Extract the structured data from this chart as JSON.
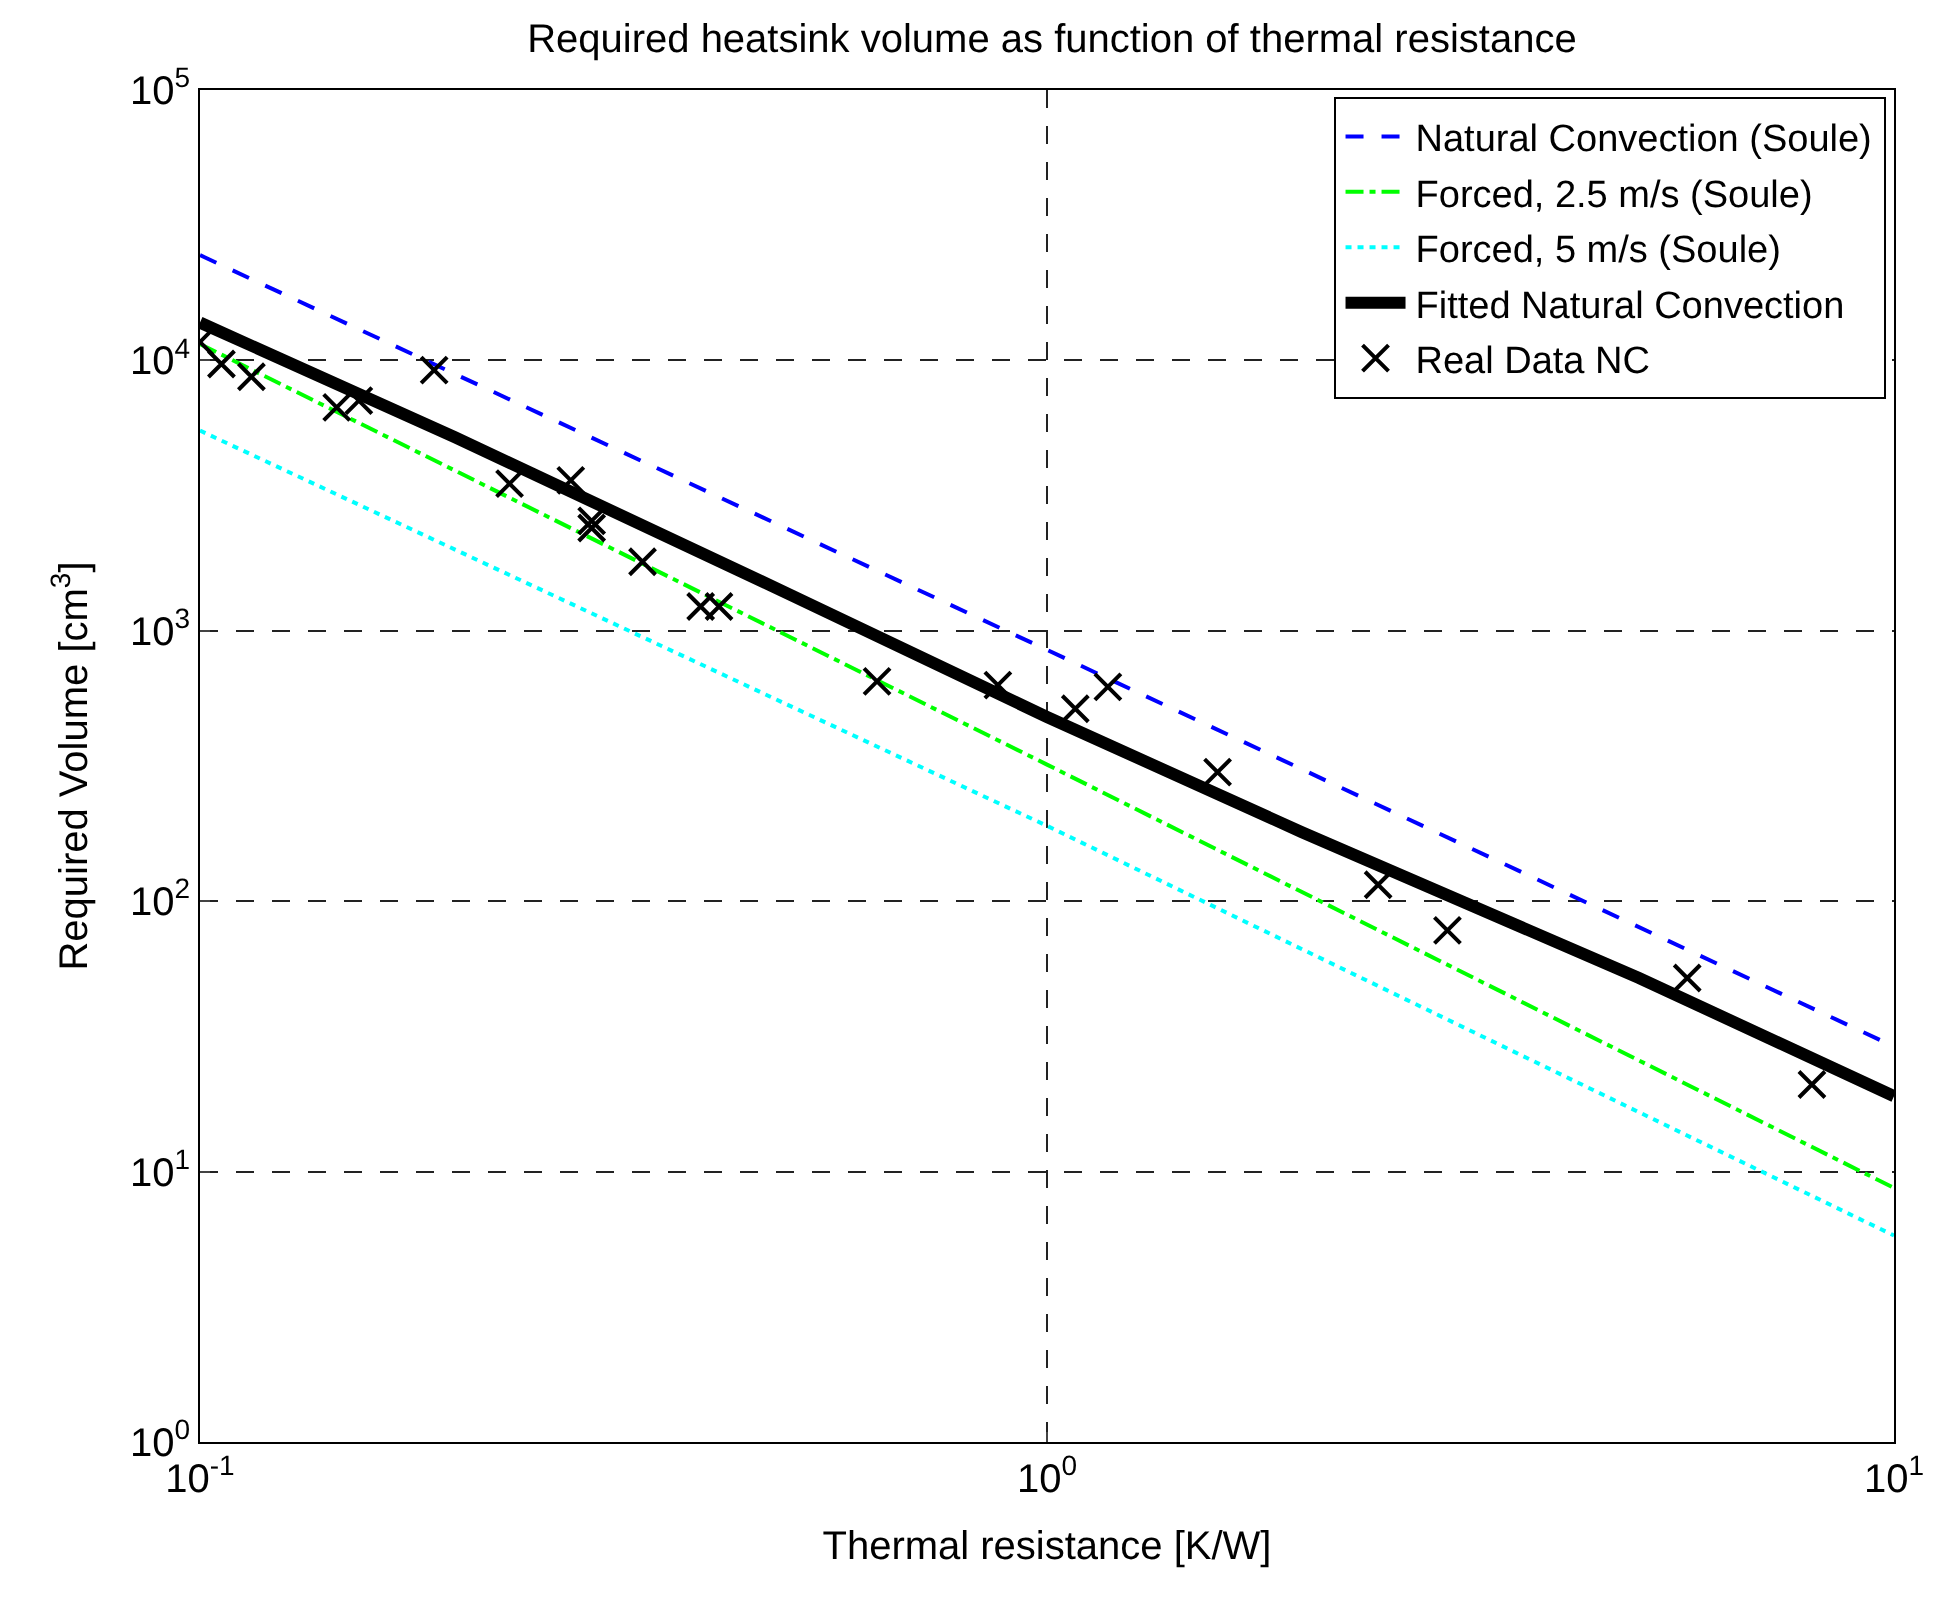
{
  "chart_data": {
    "type": "line",
    "title": "Required heatsink volume as function of thermal resistance",
    "xlabel": "Thermal resistance [K/W]",
    "ylabel": "Required Volume [cm$^{3}$]",
    "log": "xy",
    "grid": true,
    "legend": "top right",
    "xlim": [
      0.1,
      10
    ],
    "ylim": [
      1,
      100000
    ],
    "xticks": [
      {
        "value": 0.1,
        "label": "10$^{-1}$"
      },
      {
        "value": 1,
        "label": "10$^{0}$"
      },
      {
        "value": 10,
        "label": "10$^{1}$"
      }
    ],
    "yticks": [
      {
        "value": 1,
        "label": "10$^{0}$"
      },
      {
        "value": 10,
        "label": "10$^{1}$"
      },
      {
        "value": 100,
        "label": "10$^{2}$"
      },
      {
        "value": 1000,
        "label": "10$^{3}$"
      },
      {
        "value": 10000,
        "label": "10$^{4}$"
      },
      {
        "value": 100000,
        "label": "10$^{5}$"
      }
    ],
    "series": [
      {
        "name": "Natural Convection (Soule)",
        "color": "#0000ff",
        "line_style": "dashed",
        "x": [
          0.1,
          1,
          10
        ],
        "values": [
          24500,
          850,
          29
        ]
      },
      {
        "name": "Forced, 2.5 m/s (Soule)",
        "color": "#00ff00",
        "line_style": "dashdot",
        "x": [
          0.1,
          1,
          10
        ],
        "values": [
          11500,
          320,
          8.7
        ]
      },
      {
        "name": "Forced, 5 m/s (Soule)",
        "color": "#00ffff",
        "line_style": "dotted",
        "x": [
          0.1,
          1,
          10
        ],
        "values": [
          5500,
          190,
          5.8
        ]
      },
      {
        "name": "Fitted Natural Convection",
        "color": "#000000",
        "line_style": "solid",
        "x": [
          0.1,
          0.2,
          0.5,
          1,
          2,
          5,
          10
        ],
        "values": [
          13800,
          5200,
          1350,
          480,
          180,
          52,
          19
        ]
      },
      {
        "name": "Real Data NC",
        "color": "#000000",
        "type": "scatter",
        "marker": "cross",
        "x": [
          0.1,
          0.106,
          0.115,
          0.145,
          0.154,
          0.189,
          0.232,
          0.274,
          0.29,
          0.29,
          0.333,
          0.39,
          0.41,
          0.63,
          0.875,
          1.08,
          1.18,
          1.59,
          2.46,
          2.97,
          5.7,
          8.0
        ],
        "values": [
          11700,
          9700,
          8700,
          6700,
          7100,
          9200,
          3500,
          3600,
          2550,
          2400,
          1800,
          1230,
          1230,
          650,
          630,
          515,
          620,
          300,
          115,
          78,
          52,
          21
        ]
      }
    ]
  }
}
